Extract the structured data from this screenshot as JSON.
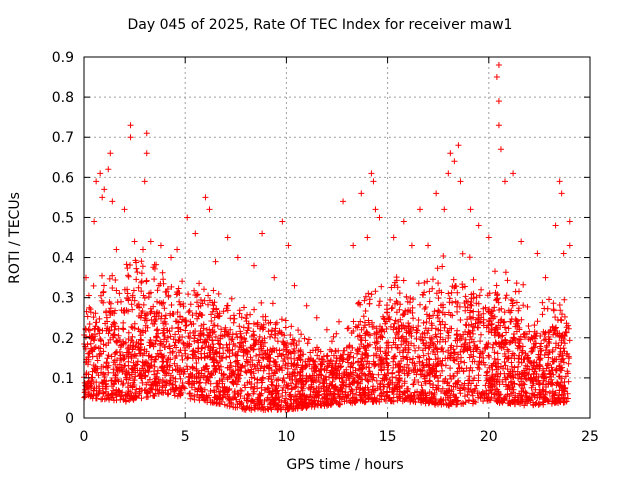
{
  "chart_data": {
    "type": "scatter",
    "title": "Day 045 of 2025, Rate Of TEC Index for receiver maw1",
    "xlabel": "GPS time / hours",
    "ylabel": "ROTI / TECUs",
    "xlim": [
      0,
      25
    ],
    "ylim": [
      0,
      0.9
    ],
    "xticks": [
      "0",
      "5",
      "10",
      "15",
      "20",
      "25"
    ],
    "yticks": [
      "0",
      "0.1",
      "0.2",
      "0.3",
      "0.4",
      "0.5",
      "0.6",
      "0.7",
      "0.8",
      "0.9"
    ],
    "grid": true,
    "marker": "+",
    "color": "#ff0000",
    "points": [
      [
        0.1,
        0.35
      ],
      [
        0.5,
        0.49
      ],
      [
        0.6,
        0.59
      ],
      [
        0.8,
        0.61
      ],
      [
        0.9,
        0.55
      ],
      [
        1.0,
        0.57
      ],
      [
        1.2,
        0.62
      ],
      [
        1.3,
        0.66
      ],
      [
        1.4,
        0.54
      ],
      [
        1.6,
        0.42
      ],
      [
        2.0,
        0.52
      ],
      [
        2.3,
        0.73
      ],
      [
        2.3,
        0.7
      ],
      [
        2.5,
        0.44
      ],
      [
        3.1,
        0.71
      ],
      [
        3.1,
        0.66
      ],
      [
        3.0,
        0.59
      ],
      [
        3.3,
        0.44
      ],
      [
        3.8,
        0.43
      ],
      [
        4.3,
        0.4
      ],
      [
        4.6,
        0.42
      ],
      [
        5.1,
        0.5
      ],
      [
        5.5,
        0.46
      ],
      [
        6.0,
        0.55
      ],
      [
        6.2,
        0.52
      ],
      [
        6.5,
        0.39
      ],
      [
        7.1,
        0.45
      ],
      [
        7.6,
        0.4
      ],
      [
        8.4,
        0.38
      ],
      [
        8.8,
        0.46
      ],
      [
        9.4,
        0.35
      ],
      [
        9.8,
        0.49
      ],
      [
        10.1,
        0.43
      ],
      [
        10.4,
        0.33
      ],
      [
        11.0,
        0.28
      ],
      [
        11.5,
        0.25
      ],
      [
        12.0,
        0.22
      ],
      [
        12.6,
        0.24
      ],
      [
        12.8,
        0.54
      ],
      [
        13.3,
        0.43
      ],
      [
        13.7,
        0.56
      ],
      [
        14.0,
        0.45
      ],
      [
        14.2,
        0.61
      ],
      [
        14.3,
        0.59
      ],
      [
        14.4,
        0.52
      ],
      [
        14.6,
        0.5
      ],
      [
        15.3,
        0.45
      ],
      [
        15.8,
        0.49
      ],
      [
        16.2,
        0.43
      ],
      [
        16.6,
        0.52
      ],
      [
        17.0,
        0.43
      ],
      [
        17.4,
        0.56
      ],
      [
        17.8,
        0.52
      ],
      [
        18.0,
        0.61
      ],
      [
        18.1,
        0.66
      ],
      [
        18.3,
        0.64
      ],
      [
        18.5,
        0.68
      ],
      [
        18.6,
        0.59
      ],
      [
        19.1,
        0.52
      ],
      [
        19.5,
        0.48
      ],
      [
        20.0,
        0.45
      ],
      [
        20.4,
        0.85
      ],
      [
        20.5,
        0.88
      ],
      [
        20.5,
        0.79
      ],
      [
        20.5,
        0.73
      ],
      [
        20.6,
        0.67
      ],
      [
        20.8,
        0.59
      ],
      [
        21.2,
        0.61
      ],
      [
        21.6,
        0.44
      ],
      [
        22.4,
        0.41
      ],
      [
        22.8,
        0.35
      ],
      [
        23.3,
        0.48
      ],
      [
        23.5,
        0.59
      ],
      [
        23.6,
        0.56
      ],
      [
        23.7,
        0.41
      ],
      [
        24.0,
        0.49
      ],
      [
        24.0,
        0.43
      ]
    ]
  }
}
